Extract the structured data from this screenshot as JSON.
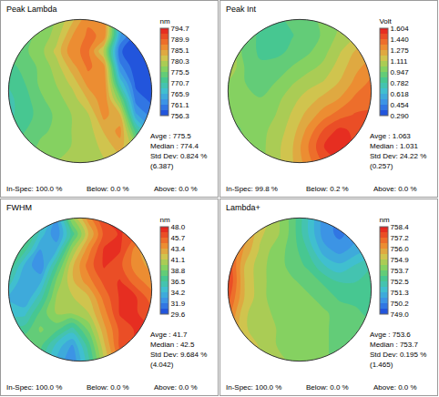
{
  "chart_data": [
    {
      "type": "heatmap",
      "title": "Peak Lambda",
      "x": [
        -0.9,
        -0.7,
        -0.5,
        -0.3,
        -0.1,
        0.1,
        0.3,
        0.5,
        0.7,
        0.9
      ],
      "y": [
        0.9,
        0.7,
        0.5,
        0.3,
        0.1,
        -0.1,
        -0.3,
        -0.5,
        -0.7,
        -0.9
      ],
      "z": [
        [
          null,
          null,
          776,
          778,
          782,
          787,
          787,
          765,
          null,
          null
        ],
        [
          null,
          775,
          776,
          779,
          785,
          788,
          787,
          764,
          758,
          null
        ],
        [
          774,
          775,
          777,
          781,
          787,
          788,
          780,
          759,
          757,
          757
        ],
        [
          772,
          774,
          776,
          779,
          784,
          788,
          786,
          762,
          757,
          757
        ],
        [
          771,
          773,
          776,
          778,
          781,
          786,
          787,
          768,
          758,
          757
        ],
        [
          770,
          772,
          775,
          777,
          779,
          783,
          787,
          776,
          760,
          758
        ],
        [
          770,
          772,
          774,
          776,
          778,
          780,
          786,
          783,
          764,
          760
        ],
        [
          771,
          773,
          775,
          776,
          778,
          779,
          783,
          786,
          772,
          764
        ],
        [
          null,
          774,
          776,
          777,
          778,
          779,
          781,
          784,
          778,
          null
        ],
        [
          null,
          null,
          777,
          778,
          778,
          779,
          780,
          781,
          null,
          null
        ]
      ],
      "xlim": [
        -0.95,
        0.95
      ],
      "ylim": [
        -0.95,
        0.95
      ],
      "tick_labels": false,
      "colorbar": {
        "title": "nm",
        "range": [
          756.3,
          794.7
        ],
        "ticks": [
          794.7,
          789.9,
          785.1,
          780.3,
          775.5,
          770.7,
          765.9,
          761.1,
          756.3
        ]
      },
      "stats": [
        "Avge : 775.5",
        "Median : 774.4",
        "Std Dev: 0.824 %",
        "(6.387)"
      ],
      "footer": [
        "In-Spec: 100.0 %",
        "Below: 0.0 %",
        "Above: 0.0 %"
      ]
    },
    {
      "type": "heatmap",
      "title": "Peak Int",
      "x": [
        -0.9,
        -0.7,
        -0.5,
        -0.3,
        -0.1,
        0.1,
        0.3,
        0.5,
        0.7,
        0.9
      ],
      "y": [
        0.9,
        0.7,
        0.5,
        0.3,
        0.1,
        -0.1,
        -0.3,
        -0.5,
        -0.7,
        -0.9
      ],
      "z": [
        [
          null,
          null,
          0.85,
          0.85,
          0.88,
          0.92,
          0.97,
          1.02,
          null,
          null
        ],
        [
          null,
          0.95,
          0.84,
          0.83,
          0.86,
          0.9,
          0.96,
          1.05,
          1.1,
          null
        ],
        [
          1.1,
          0.92,
          0.85,
          0.84,
          0.88,
          0.93,
          1.0,
          1.1,
          1.2,
          1.25
        ],
        [
          1.12,
          0.95,
          0.88,
          0.9,
          0.95,
          1.0,
          1.05,
          1.15,
          1.25,
          1.32
        ],
        [
          1.02,
          0.95,
          0.92,
          0.95,
          1.02,
          1.08,
          1.12,
          1.2,
          1.3,
          1.38
        ],
        [
          0.97,
          0.95,
          0.95,
          1.0,
          1.08,
          1.15,
          1.22,
          1.28,
          1.38,
          1.42
        ],
        [
          0.95,
          0.95,
          0.98,
          1.03,
          1.12,
          1.22,
          1.32,
          1.4,
          1.45,
          1.45
        ],
        [
          0.93,
          0.95,
          1.0,
          1.06,
          1.15,
          1.3,
          1.45,
          1.55,
          1.5,
          1.45
        ],
        [
          null,
          0.95,
          1.0,
          1.08,
          1.18,
          1.35,
          1.52,
          1.58,
          1.5,
          null
        ],
        [
          null,
          null,
          1.0,
          1.08,
          1.18,
          1.32,
          1.45,
          1.5,
          null,
          null
        ]
      ],
      "xlim": [
        -0.95,
        0.95
      ],
      "ylim": [
        -0.95,
        0.95
      ],
      "tick_labels": false,
      "colorbar": {
        "title": "Volt",
        "range": [
          0.29,
          1.604
        ],
        "ticks": [
          1.604,
          {
            "value": 1.44,
            "label": "1.440"
          },
          1.275,
          1.111,
          0.947,
          0.782,
          0.618,
          0.454,
          {
            "value": 0.29,
            "label": "0.290"
          }
        ]
      },
      "stats": [
        "Avge : 1.063",
        "Median : 1.031",
        "Std Dev: 24.22 %",
        "(0.257)"
      ],
      "footer": [
        "In-Spec: 99.8 %",
        "Below: 0.2 %",
        "Above: 0.0 %"
      ]
    },
    {
      "type": "heatmap",
      "title": "FWHM",
      "x": [
        -0.9,
        -0.7,
        -0.5,
        -0.3,
        -0.1,
        0.1,
        0.3,
        0.5,
        0.7,
        0.9
      ],
      "y": [
        0.9,
        0.7,
        0.5,
        0.3,
        0.1,
        -0.1,
        -0.3,
        -0.5,
        -0.7,
        -0.9
      ],
      "z": [
        [
          null,
          null,
          36,
          33,
          40,
          44,
          47,
          47,
          null,
          null
        ],
        [
          null,
          39,
          35,
          32,
          37,
          42,
          46,
          47,
          46,
          null
        ],
        [
          40,
          37,
          33,
          34,
          40,
          44,
          47,
          47,
          44,
          42
        ],
        [
          38,
          34,
          32,
          37,
          42,
          45,
          47,
          46,
          44,
          43
        ],
        [
          36,
          33,
          34,
          39,
          42,
          44,
          46,
          47,
          45,
          44
        ],
        [
          34,
          33,
          36,
          40,
          41,
          42,
          45,
          47,
          47,
          45
        ],
        [
          35,
          35,
          38,
          40,
          40,
          41,
          44,
          47,
          47,
          46
        ],
        [
          37,
          37,
          39,
          38,
          36,
          39,
          43,
          46,
          47,
          47
        ],
        [
          null,
          39,
          38,
          35,
          33,
          37,
          42,
          46,
          47,
          null
        ],
        [
          null,
          null,
          37,
          34,
          32,
          36,
          41,
          45,
          null,
          null
        ]
      ],
      "xlim": [
        -0.95,
        0.95
      ],
      "ylim": [
        -0.95,
        0.95
      ],
      "tick_labels": false,
      "colorbar": {
        "title": "nm",
        "range": [
          29.6,
          48
        ],
        "ticks": [
          {
            "value": 48,
            "label": "48.0"
          },
          45.7,
          43.4,
          41.1,
          38.8,
          36.5,
          34.2,
          31.9,
          29.6
        ]
      },
      "stats": [
        "Avge : 41.7",
        "Median : 42.5",
        "Std Dev: 9.684 %",
        "(4.042)"
      ],
      "footer": [
        "In-Spec: 100.0 %",
        "Below: 0.0 %",
        "Above: 0.0 %"
      ]
    },
    {
      "type": "heatmap",
      "title": "Lambda+",
      "x": [
        -0.9,
        -0.7,
        -0.5,
        -0.3,
        -0.1,
        0.1,
        0.3,
        0.5,
        0.7,
        0.9
      ],
      "y": [
        0.9,
        0.7,
        0.5,
        0.3,
        0.1,
        -0.1,
        -0.3,
        -0.5,
        -0.7,
        -0.9
      ],
      "z": [
        [
          null,
          null,
          755.5,
          754.5,
          753.5,
          752.0,
          750.5,
          750.0,
          null,
          null
        ],
        [
          null,
          756.5,
          755.0,
          754.5,
          753.5,
          752.0,
          750.5,
          750.0,
          750.5,
          null
        ],
        [
          757.5,
          756.0,
          754.8,
          754.0,
          753.5,
          752.5,
          751.0,
          750.5,
          751.0,
          751.5
        ],
        [
          757.8,
          755.5,
          754.5,
          754.0,
          753.5,
          753.0,
          752.0,
          751.5,
          752.0,
          752.5
        ],
        [
          758.0,
          755.5,
          754.5,
          754.0,
          753.8,
          753.5,
          753.0,
          752.5,
          752.5,
          753.0
        ],
        [
          757.5,
          755.5,
          754.5,
          754.0,
          754.0,
          753.8,
          753.5,
          753.0,
          753.0,
          753.0
        ],
        [
          757.0,
          755.0,
          754.5,
          754.2,
          754.0,
          754.0,
          753.8,
          753.5,
          753.2,
          753.0
        ],
        [
          756.5,
          755.0,
          754.5,
          754.3,
          754.0,
          754.0,
          753.8,
          753.5,
          753.5,
          753.2
        ],
        [
          null,
          755.5,
          754.8,
          754.3,
          754.0,
          754.0,
          753.8,
          753.5,
          753.5,
          null
        ],
        [
          null,
          null,
          755.0,
          754.5,
          754.2,
          754.0,
          753.8,
          753.5,
          null,
          null
        ]
      ],
      "xlim": [
        -0.95,
        0.95
      ],
      "ylim": [
        -0.95,
        0.95
      ],
      "tick_labels": false,
      "colorbar": {
        "title": "nm",
        "range": [
          749,
          758.4
        ],
        "ticks": [
          758.4,
          757.2,
          {
            "value": 756,
            "label": "756.0"
          },
          754.9,
          753.7,
          752.5,
          751.3,
          750.2,
          {
            "value": 749,
            "label": "749.0"
          }
        ]
      },
      "stats": [
        "Avge : 753.6",
        "Median : 753.7",
        "Std Dev: 0.195 %",
        "(1.465)"
      ],
      "footer": [
        "In-Spec: 100.0 %",
        "Below: 0.0 %",
        "Above: 0.0 %"
      ]
    }
  ]
}
